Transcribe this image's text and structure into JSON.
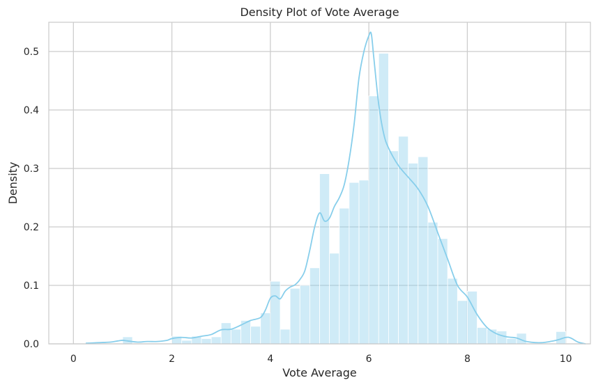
{
  "chart_data": {
    "type": "histogram+kde",
    "title": "Density Plot of Vote Average",
    "xlabel": "Vote Average",
    "ylabel": "Density",
    "xlim": [
      -0.5,
      10.5
    ],
    "ylim": [
      0,
      0.55
    ],
    "grid": true,
    "legend": "none",
    "x_ticks": [
      0,
      2,
      4,
      6,
      8,
      10
    ],
    "x_tick_labels": [
      "0",
      "2",
      "4",
      "6",
      "8",
      "10"
    ],
    "y_ticks": [
      0.0,
      0.1,
      0.2,
      0.3,
      0.4,
      0.5
    ],
    "y_tick_labels": [
      "0.0",
      "0.1",
      "0.2",
      "0.3",
      "0.4",
      "0.5"
    ],
    "histogram": {
      "color": "#87ceeb",
      "opacity": 0.4,
      "bin_width": 0.2,
      "bin_starts": [
        0.0,
        0.2,
        0.4,
        0.6,
        0.8,
        1.0,
        1.2,
        1.4,
        1.6,
        1.8,
        2.0,
        2.2,
        2.4,
        2.6,
        2.8,
        3.0,
        3.2,
        3.4,
        3.6,
        3.8,
        4.0,
        4.2,
        4.4,
        4.6,
        4.8,
        5.0,
        5.2,
        5.4,
        5.6,
        5.8,
        6.0,
        6.2,
        6.4,
        6.6,
        6.8,
        7.0,
        7.2,
        7.4,
        7.6,
        7.8,
        8.0,
        8.2,
        8.4,
        8.6,
        8.8,
        9.0,
        9.2,
        9.4,
        9.6,
        9.8
      ],
      "densities": [
        0.0,
        0.0,
        0.0,
        0.0,
        0.0,
        0.012,
        0.0,
        0.0,
        0.0,
        0.0,
        0.013,
        0.006,
        0.013,
        0.009,
        0.012,
        0.036,
        0.025,
        0.04,
        0.03,
        0.053,
        0.107,
        0.025,
        0.095,
        0.1,
        0.13,
        0.291,
        0.155,
        0.232,
        0.276,
        0.28,
        0.424,
        0.497,
        0.33,
        0.355,
        0.309,
        0.32,
        0.208,
        0.18,
        0.112,
        0.074,
        0.09,
        0.028,
        0.025,
        0.022,
        0.009,
        0.018,
        0.0,
        0.0,
        0.0,
        0.021
      ]
    },
    "kde": {
      "color": "#87ceeb",
      "x": [
        0.25,
        0.5,
        0.75,
        0.9,
        1.0,
        1.1,
        1.3,
        1.5,
        1.7,
        1.9,
        2.0,
        2.2,
        2.4,
        2.6,
        2.8,
        3.0,
        3.2,
        3.4,
        3.6,
        3.8,
        3.9,
        4.0,
        4.1,
        4.2,
        4.3,
        4.4,
        4.5,
        4.6,
        4.7,
        4.8,
        4.9,
        5.0,
        5.1,
        5.2,
        5.3,
        5.4,
        5.5,
        5.6,
        5.7,
        5.8,
        5.9,
        6.0,
        6.05,
        6.1,
        6.2,
        6.3,
        6.4,
        6.6,
        6.8,
        7.0,
        7.2,
        7.4,
        7.6,
        7.8,
        8.0,
        8.2,
        8.4,
        8.6,
        8.8,
        9.0,
        9.2,
        9.5,
        9.8,
        10.0,
        10.1,
        10.25,
        10.4
      ],
      "y": [
        0.001,
        0.002,
        0.003,
        0.005,
        0.006,
        0.005,
        0.003,
        0.004,
        0.004,
        0.006,
        0.009,
        0.011,
        0.01,
        0.013,
        0.016,
        0.024,
        0.025,
        0.032,
        0.04,
        0.045,
        0.058,
        0.078,
        0.082,
        0.077,
        0.09,
        0.097,
        0.101,
        0.11,
        0.125,
        0.16,
        0.2,
        0.224,
        0.21,
        0.215,
        0.235,
        0.25,
        0.272,
        0.315,
        0.375,
        0.455,
        0.5,
        0.527,
        0.53,
        0.49,
        0.41,
        0.36,
        0.335,
        0.305,
        0.285,
        0.265,
        0.235,
        0.19,
        0.145,
        0.1,
        0.08,
        0.05,
        0.028,
        0.017,
        0.012,
        0.01,
        0.004,
        0.002,
        0.006,
        0.011,
        0.01,
        0.003,
        0.0
      ]
    }
  }
}
